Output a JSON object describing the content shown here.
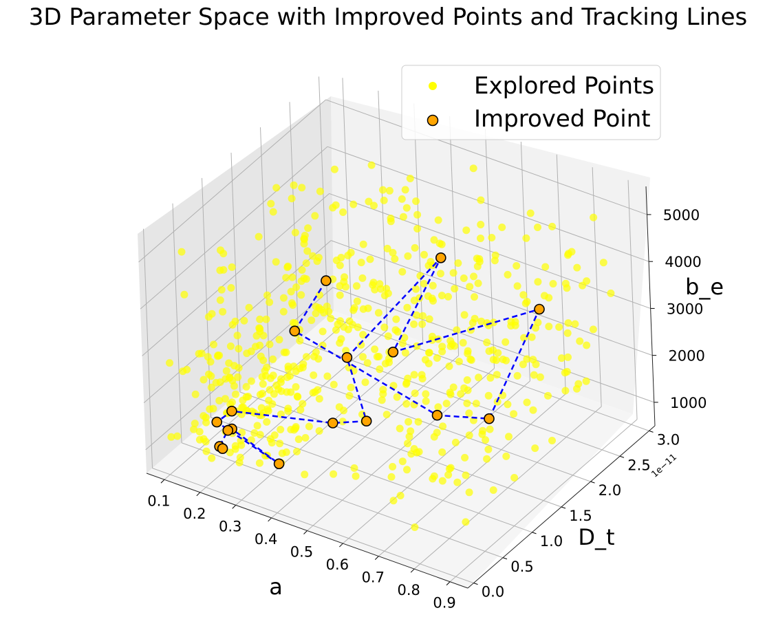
{
  "chart_data": {
    "type": "scatter",
    "projection": "3d",
    "title": "3D Parameter Space with Improved Points and Tracking Lines",
    "xlabel": "a",
    "ylabel": "D_t",
    "zlabel": "b_e",
    "xlim": [
      0.05,
      0.95
    ],
    "ylim": [
      -0.1,
      3.1
    ],
    "zlim": [
      500,
      5600
    ],
    "x_ticks": [
      "0.1",
      "0.2",
      "0.3",
      "0.4",
      "0.5",
      "0.6",
      "0.7",
      "0.8",
      "0.9"
    ],
    "y_ticks": [
      "0.0",
      "0.5",
      "1.0",
      "1.5",
      "2.0",
      "2.5",
      "3.0"
    ],
    "z_ticks": [
      "1000",
      "2000",
      "3000",
      "4000",
      "5000"
    ],
    "y_offset_label": "1e−11",
    "grid": true,
    "legend_position": "upper right",
    "colors": {
      "explored": "#ffff00",
      "improved_fill": "#ffa500",
      "improved_edge": "#000000",
      "track_line": "#0000ff"
    },
    "series": [
      {
        "name": "Explored Points",
        "marker": "circle",
        "color": "#ffff00",
        "count_note": "approx 500 samples spread across the whole parameter box",
        "x_range": [
          0.1,
          0.9
        ],
        "y_range": [
          0.0,
          3.0
        ],
        "z_range": [
          1000,
          5000
        ]
      },
      {
        "name": "Improved Point",
        "marker": "circle",
        "color": "#ffa500",
        "connected_by": "dashed line",
        "points": [
          {
            "x": 0.46,
            "y": 0.6,
            "z": 4960
          },
          {
            "x": 0.34,
            "y": 0.75,
            "z": 3400
          },
          {
            "x": 0.71,
            "y": 0.9,
            "z": 2450
          },
          {
            "x": 0.78,
            "y": 1.35,
            "z": 2080
          },
          {
            "x": 0.78,
            "y": 2.25,
            "z": 3440
          },
          {
            "x": 0.54,
            "y": 1.2,
            "z": 3010
          },
          {
            "x": 0.6,
            "y": 1.7,
            "z": 4640
          },
          {
            "x": 0.46,
            "y": 0.9,
            "z": 3000
          },
          {
            "x": 0.5,
            "y": 0.95,
            "z": 1700
          },
          {
            "x": 0.43,
            "y": 0.8,
            "z": 1630
          },
          {
            "x": 0.23,
            "y": 0.3,
            "z": 1880
          },
          {
            "x": 0.19,
            "y": 0.28,
            "z": 1560
          },
          {
            "x": 0.35,
            "y": 0.35,
            "z": 1030
          },
          {
            "x": 0.22,
            "y": 0.35,
            "z": 1420
          },
          {
            "x": 0.2,
            "y": 0.4,
            "z": 1280
          },
          {
            "x": 0.2,
            "y": 0.25,
            "z": 1100
          },
          {
            "x": 0.2,
            "y": 0.3,
            "z": 1000
          }
        ]
      }
    ]
  }
}
